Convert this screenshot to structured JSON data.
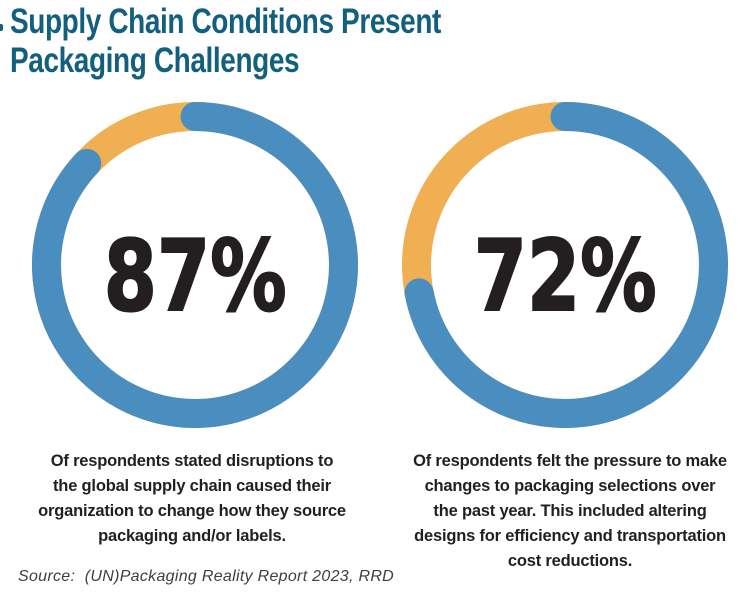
{
  "title": "Supply Chain Conditions Present\nPackaging Challenges",
  "colors": {
    "title": "#135F7E",
    "ring_value": "#4A8EC0",
    "ring_remainder": "#EFAF52",
    "body_text": "#231F20",
    "source_text": "#3E3E3E",
    "background": "#FFFFFF"
  },
  "chart_data": {
    "type": "pie",
    "subtype": "donut-pair",
    "title": "Supply Chain Conditions Present Packaging Challenges",
    "legend": false,
    "start_angle_deg": 0,
    "direction": "clockwise",
    "charts": [
      {
        "label": "87%",
        "value": 87,
        "slices": [
          {
            "name": "respondents",
            "value": 87,
            "color": "#4A8EC0"
          },
          {
            "name": "remainder",
            "value": 13,
            "color": "#EFAF52"
          }
        ],
        "caption": "Of respondents stated disruptions to\nthe global supply chain caused their\norganization to change how they source\npackaging and/or labels."
      },
      {
        "label": "72%",
        "value": 72,
        "slices": [
          {
            "name": "respondents",
            "value": 72,
            "color": "#4A8EC0"
          },
          {
            "name": "remainder",
            "value": 28,
            "color": "#EFAF52"
          }
        ],
        "caption": "Of respondents felt the pressure to make\nchanges to packaging selections over\nthe past year. This included altering\ndesigns for efficiency and transportation\ncost reductions."
      }
    ]
  },
  "source": "Source:  (UN)Packaging Reality Report 2023, RRD"
}
